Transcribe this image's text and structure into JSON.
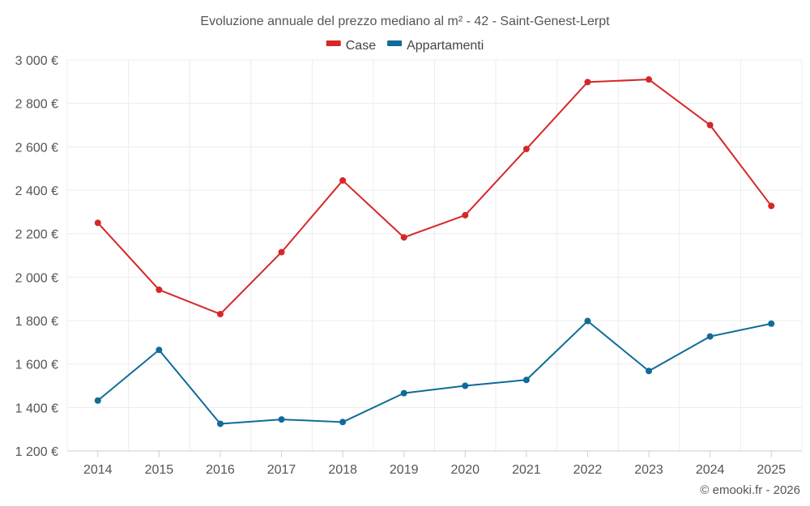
{
  "chart_data": {
    "type": "line",
    "title": "Evoluzione annuale del prezzo mediano al m² - 42 - Saint-Genest-Lerpt",
    "xlabel": "",
    "ylabel": "",
    "categories": [
      "2014",
      "2015",
      "2016",
      "2017",
      "2018",
      "2019",
      "2020",
      "2021",
      "2022",
      "2023",
      "2024",
      "2025"
    ],
    "ylim": [
      1200,
      3000
    ],
    "yticks": [
      1200,
      1400,
      1600,
      1800,
      2000,
      2200,
      2400,
      2600,
      2800,
      3000
    ],
    "ytick_labels": [
      "1 200 €",
      "1 400 €",
      "1 600 €",
      "1 800 €",
      "2 000 €",
      "2 200 €",
      "2 400 €",
      "2 600 €",
      "2 800 €",
      "3 000 €"
    ],
    "grid": true,
    "legend_position": "top-center",
    "series": [
      {
        "name": "Case",
        "color": "#d62728",
        "values": [
          2250,
          1942,
          1830,
          2115,
          2445,
          2183,
          2285,
          2590,
          2898,
          2910,
          2700,
          2328
        ]
      },
      {
        "name": "Appartamenti",
        "color": "#0f6b99",
        "values": [
          1432,
          1665,
          1325,
          1345,
          1333,
          1466,
          1500,
          1527,
          1798,
          1568,
          1727,
          1786
        ]
      }
    ]
  },
  "credit": "© emooki.fr - 2026"
}
